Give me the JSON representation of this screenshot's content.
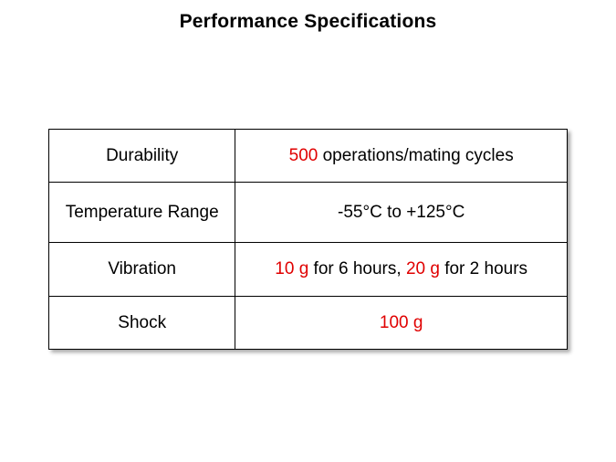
{
  "title": "Performance Specifications",
  "colors": {
    "highlight": "#e00000",
    "text": "#000000",
    "border": "#000000"
  },
  "table": {
    "rows": [
      {
        "label": "Durability",
        "value": [
          {
            "text": "500",
            "highlight": true
          },
          {
            "text": " operations/mating cycles",
            "highlight": false
          }
        ]
      },
      {
        "label": "Temperature Range",
        "value": [
          {
            "text": "-55°C to +125°C",
            "highlight": false
          }
        ]
      },
      {
        "label": "Vibration",
        "value": [
          {
            "text": "10 g",
            "highlight": true
          },
          {
            "text": " for 6 hours, ",
            "highlight": false
          },
          {
            "text": "20 g",
            "highlight": true
          },
          {
            "text": " for 2 hours",
            "highlight": false
          }
        ]
      },
      {
        "label": "Shock",
        "value": [
          {
            "text": "100 g",
            "highlight": true
          }
        ]
      }
    ]
  }
}
